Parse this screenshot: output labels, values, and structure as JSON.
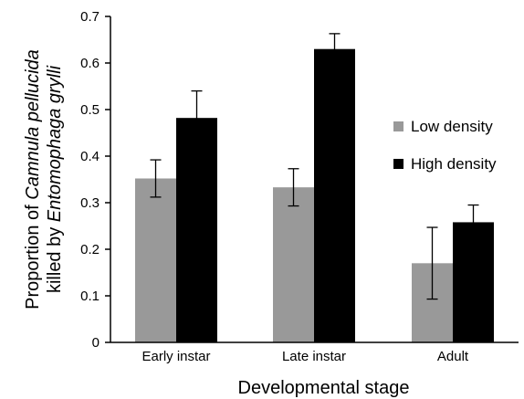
{
  "chart_data": {
    "type": "bar",
    "categories": [
      "Early instar",
      "Late instar",
      "Adult"
    ],
    "series": [
      {
        "name": "Low density",
        "color": "#999999",
        "values": [
          0.352,
          0.333,
          0.17
        ],
        "error": [
          0.04,
          0.04,
          0.077
        ]
      },
      {
        "name": "High density",
        "color": "#000000",
        "values": [
          0.482,
          0.63,
          0.258
        ],
        "error": [
          0.058,
          0.033,
          0.037
        ]
      }
    ],
    "ylim": [
      0,
      0.7
    ],
    "yticks": [
      "0",
      "0.1",
      "0.2",
      "0.3",
      "0.4",
      "0.5",
      "0.6",
      "0.7"
    ],
    "xlabel": "Developmental stage",
    "ylabel_parts": [
      [
        {
          "text": "Proportion of ",
          "italic": false
        },
        {
          "text": "Camnula pellucida",
          "italic": true
        }
      ],
      [
        {
          "text": "killed by ",
          "italic": false
        },
        {
          "text": "Entomophaga grylli",
          "italic": true
        }
      ]
    ],
    "legend_position": "right",
    "grid": false
  }
}
